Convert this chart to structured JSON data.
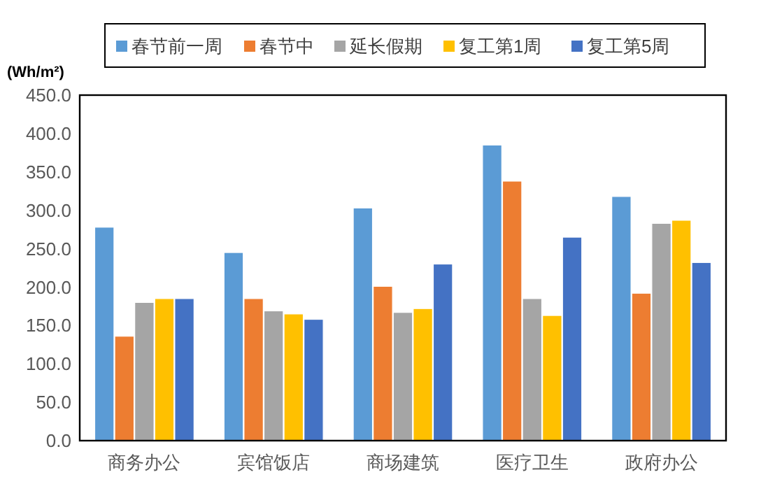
{
  "chart_data": {
    "type": "bar",
    "ylabel": "(Wh/m²)",
    "categories": [
      "商务办公",
      "宾馆饭店",
      "商场建筑",
      "医疗卫生",
      "政府办公"
    ],
    "series": [
      {
        "name": "春节前一周",
        "color": "#5b9bd5",
        "values": [
          278,
          245,
          303,
          385,
          318
        ]
      },
      {
        "name": "春节中",
        "color": "#ed7d31",
        "values": [
          136,
          185,
          201,
          338,
          192
        ]
      },
      {
        "name": "延长假期",
        "color": "#a5a5a5",
        "values": [
          180,
          169,
          167,
          185,
          283
        ]
      },
      {
        "name": "复工第1周",
        "color": "#ffc000",
        "values": [
          185,
          165,
          172,
          163,
          287
        ]
      },
      {
        "name": "复工第5周",
        "color": "#4472c4",
        "values": [
          185,
          158,
          230,
          265,
          232
        ]
      }
    ],
    "ylim": [
      0,
      450
    ],
    "yticks": [
      {
        "value": 0,
        "label": "0.0"
      },
      {
        "value": 50,
        "label": "50.0"
      },
      {
        "value": 100,
        "label": "100.0"
      },
      {
        "value": 150,
        "label": "150.0"
      },
      {
        "value": 200,
        "label": "200.0"
      },
      {
        "value": 250,
        "label": "250.0"
      },
      {
        "value": 300,
        "label": "300.0"
      },
      {
        "value": 350,
        "label": "350.0"
      },
      {
        "value": 400,
        "label": "400.0"
      },
      {
        "value": 450,
        "label": "450.0"
      }
    ],
    "legend": "top",
    "grid": false
  }
}
